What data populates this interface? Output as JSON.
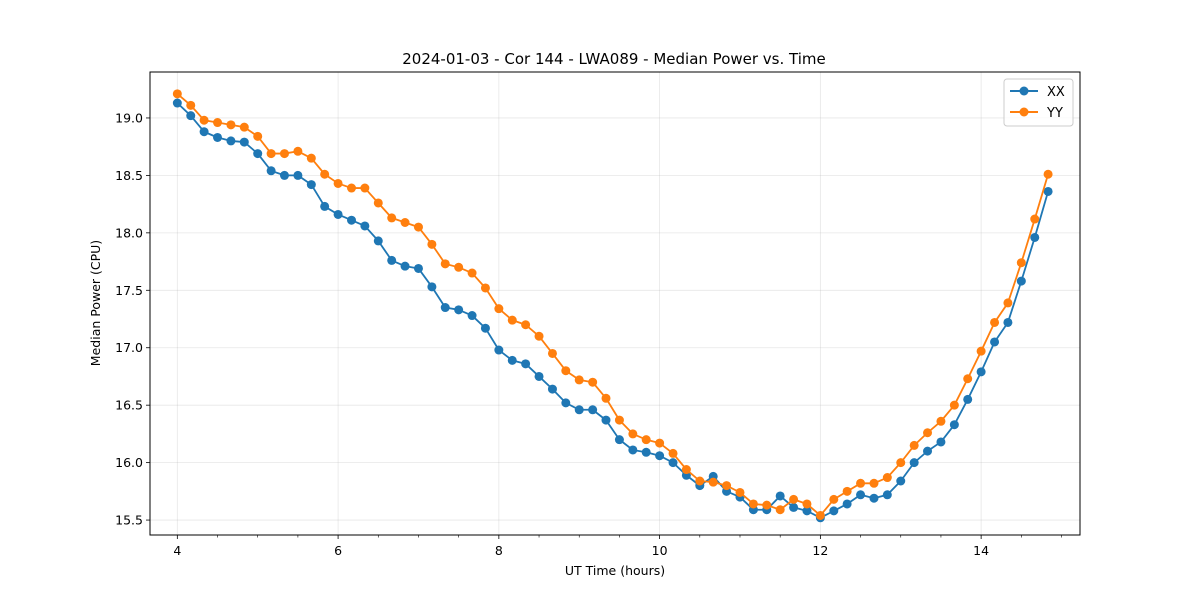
{
  "chart_data": {
    "type": "line",
    "title": "2024-01-03 - Cor 144 - LWA089 - Median Power vs. Time",
    "xlabel": "UT Time (hours)",
    "ylabel": "Median Power (CPU)",
    "xlim": [
      3.66,
      15.23
    ],
    "ylim": [
      15.37,
      19.4
    ],
    "xticks": [
      4,
      6,
      8,
      10,
      12,
      14
    ],
    "xtick_labels": [
      "4",
      "6",
      "8",
      "10",
      "12",
      "14"
    ],
    "yticks": [
      15.5,
      16.0,
      16.5,
      17.0,
      17.5,
      18.0,
      18.5,
      19.0
    ],
    "ytick_labels": [
      "15.5",
      "16.0",
      "16.5",
      "17.0",
      "17.5",
      "18.0",
      "18.5",
      "19.0"
    ],
    "grid": true,
    "legend": "top-right",
    "x": [
      4.0,
      4.167,
      4.333,
      4.5,
      4.667,
      4.833,
      5.0,
      5.167,
      5.333,
      5.5,
      5.667,
      5.833,
      6.0,
      6.167,
      6.333,
      6.5,
      6.667,
      6.833,
      7.0,
      7.167,
      7.333,
      7.5,
      7.667,
      7.833,
      8.0,
      8.167,
      8.333,
      8.5,
      8.667,
      8.833,
      9.0,
      9.167,
      9.333,
      9.5,
      9.667,
      9.833,
      10.0,
      10.167,
      10.333,
      10.5,
      10.667,
      10.833,
      11.0,
      11.167,
      11.333,
      11.5,
      11.667,
      11.833,
      12.0,
      12.167,
      12.333,
      12.5,
      12.667,
      12.833,
      13.0,
      13.167,
      13.333,
      13.5,
      13.667,
      13.833,
      14.0,
      14.167,
      14.333,
      14.5,
      14.667,
      14.833
    ],
    "series": [
      {
        "name": "XX",
        "color": "#1f77b4",
        "values": [
          19.13,
          19.02,
          18.88,
          18.83,
          18.8,
          18.79,
          18.69,
          18.54,
          18.5,
          18.5,
          18.42,
          18.23,
          18.16,
          18.11,
          18.06,
          17.93,
          17.76,
          17.71,
          17.69,
          17.53,
          17.35,
          17.33,
          17.28,
          17.17,
          16.98,
          16.89,
          16.86,
          16.75,
          16.64,
          16.52,
          16.46,
          16.46,
          16.37,
          16.2,
          16.11,
          16.09,
          16.06,
          16.0,
          15.89,
          15.8,
          15.88,
          15.75,
          15.7,
          15.59,
          15.59,
          15.71,
          15.61,
          15.58,
          15.52,
          15.58,
          15.64,
          15.72,
          15.69,
          15.72,
          15.84,
          16.0,
          16.1,
          16.18,
          16.33,
          16.55,
          16.79,
          17.05,
          17.22,
          17.58,
          17.96,
          18.36
        ]
      },
      {
        "name": "YY",
        "color": "#ff7f0e",
        "values": [
          19.21,
          19.11,
          18.98,
          18.96,
          18.94,
          18.92,
          18.84,
          18.69,
          18.69,
          18.71,
          18.65,
          18.51,
          18.43,
          18.39,
          18.39,
          18.26,
          18.13,
          18.09,
          18.05,
          17.9,
          17.73,
          17.7,
          17.65,
          17.52,
          17.34,
          17.24,
          17.2,
          17.1,
          16.95,
          16.8,
          16.72,
          16.7,
          16.56,
          16.37,
          16.25,
          16.2,
          16.17,
          16.08,
          15.94,
          15.84,
          15.83,
          15.8,
          15.74,
          15.64,
          15.63,
          15.59,
          15.68,
          15.64,
          15.54,
          15.68,
          15.75,
          15.82,
          15.82,
          15.87,
          16.0,
          16.15,
          16.26,
          16.36,
          16.5,
          16.73,
          16.97,
          17.22,
          17.39,
          17.74,
          18.12,
          18.51
        ]
      }
    ]
  }
}
